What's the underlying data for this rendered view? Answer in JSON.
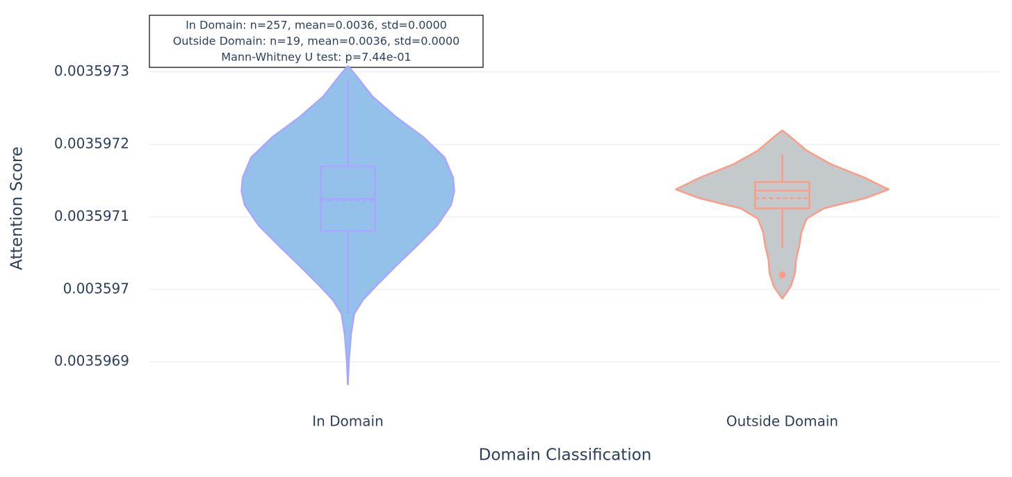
{
  "chart_data": {
    "type": "violin",
    "annotation": [
      "In Domain: n=257, mean=0.0036, std=0.0000",
      "Outside Domain: n=19, mean=0.0036, std=0.0000",
      "Mann-Whitney U test: p=7.44e-01"
    ],
    "xlabel": "Domain Classification",
    "ylabel": "Attention Score",
    "categories": [
      "In Domain",
      "Outside Domain"
    ],
    "ylim": [
      0.00359686,
      0.003597312
    ],
    "yticks": [
      0.0035969,
      0.003597,
      0.0035971,
      0.0035972,
      0.0035973
    ],
    "grid": true,
    "series": [
      {
        "name": "In Domain",
        "fill": "#93c1e9",
        "color": "#a9a6ff",
        "lower_whisker": 0.0035969665,
        "q1": 0.0035970808,
        "median": 0.0035971248,
        "mean": 0.003597123,
        "q3": 0.0035971698,
        "upper_whisker": 0.0035972878,
        "outliers": [],
        "kde_y": [
          0.0035973084,
          0.0035972944,
          0.0035972663,
          0.0035972382,
          0.0035972101,
          0.003597182,
          0.0035971539,
          0.0035971351,
          0.0035971164,
          0.0035970883,
          0.0035970602,
          0.0035970321,
          0.003597004,
          0.0035969852,
          0.0035969665,
          0.0035969384,
          0.0035969009,
          0.0035968682
        ],
        "kde_density": [
          0,
          0.08,
          0.23,
          0.45,
          0.71,
          0.91,
          0.99,
          1,
          0.97,
          0.84,
          0.65,
          0.45,
          0.26,
          0.14,
          0.06,
          0.03,
          0.01,
          0
        ]
      },
      {
        "name": "Outside Domain",
        "fill": "#c4c9cc",
        "color": "#ff9b85",
        "lower_whisker": 0.0035970574,
        "q1": 0.0035971117,
        "median": 0.0035971361,
        "mean": 0.0035971258,
        "q3": 0.0035971482,
        "upper_whisker": 0.0035971857,
        "outliers": [
          0.0035970199
        ],
        "kde_y": [
          0.0035972194,
          0.0035972101,
          0.0035971913,
          0.0035971726,
          0.0035971539,
          0.0035971379,
          0.0035971258,
          0.0035971117,
          0.0035970977,
          0.0035970789,
          0.0035970602,
          0.0035970415,
          0.0035970227,
          0.003597004,
          0.0035969871
        ],
        "kde_density": [
          0,
          0.08,
          0.23,
          0.46,
          0.78,
          1,
          0.78,
          0.39,
          0.23,
          0.18,
          0.16,
          0.13,
          0.12,
          0.08,
          0
        ]
      }
    ]
  }
}
